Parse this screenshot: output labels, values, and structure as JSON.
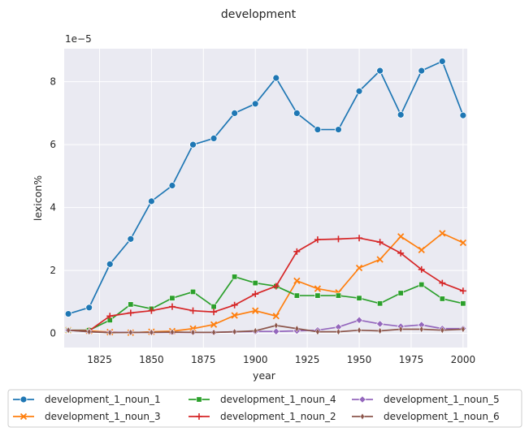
{
  "chart_data": {
    "type": "line",
    "title": "development",
    "xlabel": "year",
    "ylabel": "lexicon%",
    "y_scale_label": "1e−5",
    "xlim": [
      1808,
      2002
    ],
    "ylim": [
      -0.45,
      9.05
    ],
    "x_ticks": [
      1825,
      1850,
      1875,
      1900,
      1925,
      1950,
      1975,
      2000
    ],
    "x_tick_labels": [
      "1825",
      "1850",
      "1875",
      "1900",
      "1925",
      "1950",
      "1975",
      "2000"
    ],
    "y_ticks": [
      0,
      2,
      4,
      6,
      8
    ],
    "y_tick_labels": [
      "0",
      "2",
      "4",
      "6",
      "8"
    ],
    "grid": true,
    "legend_position": "bottom-center",
    "x": [
      1810,
      1820,
      1830,
      1840,
      1850,
      1860,
      1870,
      1880,
      1890,
      1900,
      1910,
      1920,
      1930,
      1940,
      1950,
      1960,
      1970,
      1980,
      1990,
      2000
    ],
    "series": [
      {
        "name": "development_1_noun_1",
        "color": "#1f77b4",
        "marker": "circle",
        "values": [
          0.62,
          0.82,
          2.2,
          3.0,
          4.2,
          4.7,
          6.0,
          6.2,
          7.0,
          7.3,
          8.12,
          7.0,
          6.48,
          6.48,
          7.7,
          8.35,
          6.95,
          8.35,
          8.65,
          6.93
        ]
      },
      {
        "name": "development_1_noun_3",
        "color": "#ff7f0e",
        "marker": "x",
        "values": [
          0.1,
          0.08,
          0.04,
          0.02,
          0.05,
          0.07,
          0.15,
          0.28,
          0.57,
          0.72,
          0.55,
          1.67,
          1.42,
          1.3,
          2.08,
          2.35,
          3.08,
          2.65,
          3.18,
          2.88
        ]
      },
      {
        "name": "development_1_noun_4",
        "color": "#2ca02c",
        "marker": "square",
        "values": [
          0.1,
          0.1,
          0.42,
          0.92,
          0.78,
          1.12,
          1.32,
          0.85,
          1.8,
          1.6,
          1.5,
          1.2,
          1.2,
          1.2,
          1.12,
          0.95,
          1.28,
          1.55,
          1.1,
          0.95
        ]
      },
      {
        "name": "development_1_noun_2",
        "color": "#d62728",
        "marker": "plus",
        "values": [
          0.1,
          0.08,
          0.55,
          0.65,
          0.72,
          0.85,
          0.72,
          0.68,
          0.9,
          1.25,
          1.5,
          2.6,
          2.98,
          3.0,
          3.03,
          2.9,
          2.55,
          2.03,
          1.6,
          1.35
        ]
      },
      {
        "name": "development_1_noun_5",
        "color": "#9467bd",
        "marker": "diamond",
        "values": [
          0.1,
          0.05,
          0.03,
          0.03,
          0.03,
          0.03,
          0.03,
          0.03,
          0.05,
          0.06,
          0.06,
          0.08,
          0.1,
          0.2,
          0.42,
          0.3,
          0.22,
          0.27,
          0.15,
          0.15
        ]
      },
      {
        "name": "development_1_noun_6",
        "color": "#8c564b",
        "marker": "thin-diamond",
        "values": [
          0.1,
          0.05,
          0.02,
          0.03,
          0.03,
          0.04,
          0.03,
          0.03,
          0.05,
          0.08,
          0.25,
          0.15,
          0.05,
          0.05,
          0.1,
          0.08,
          0.13,
          0.13,
          0.1,
          0.13
        ]
      }
    ],
    "legend_order": [
      0,
      1,
      2,
      3,
      4,
      5
    ]
  }
}
